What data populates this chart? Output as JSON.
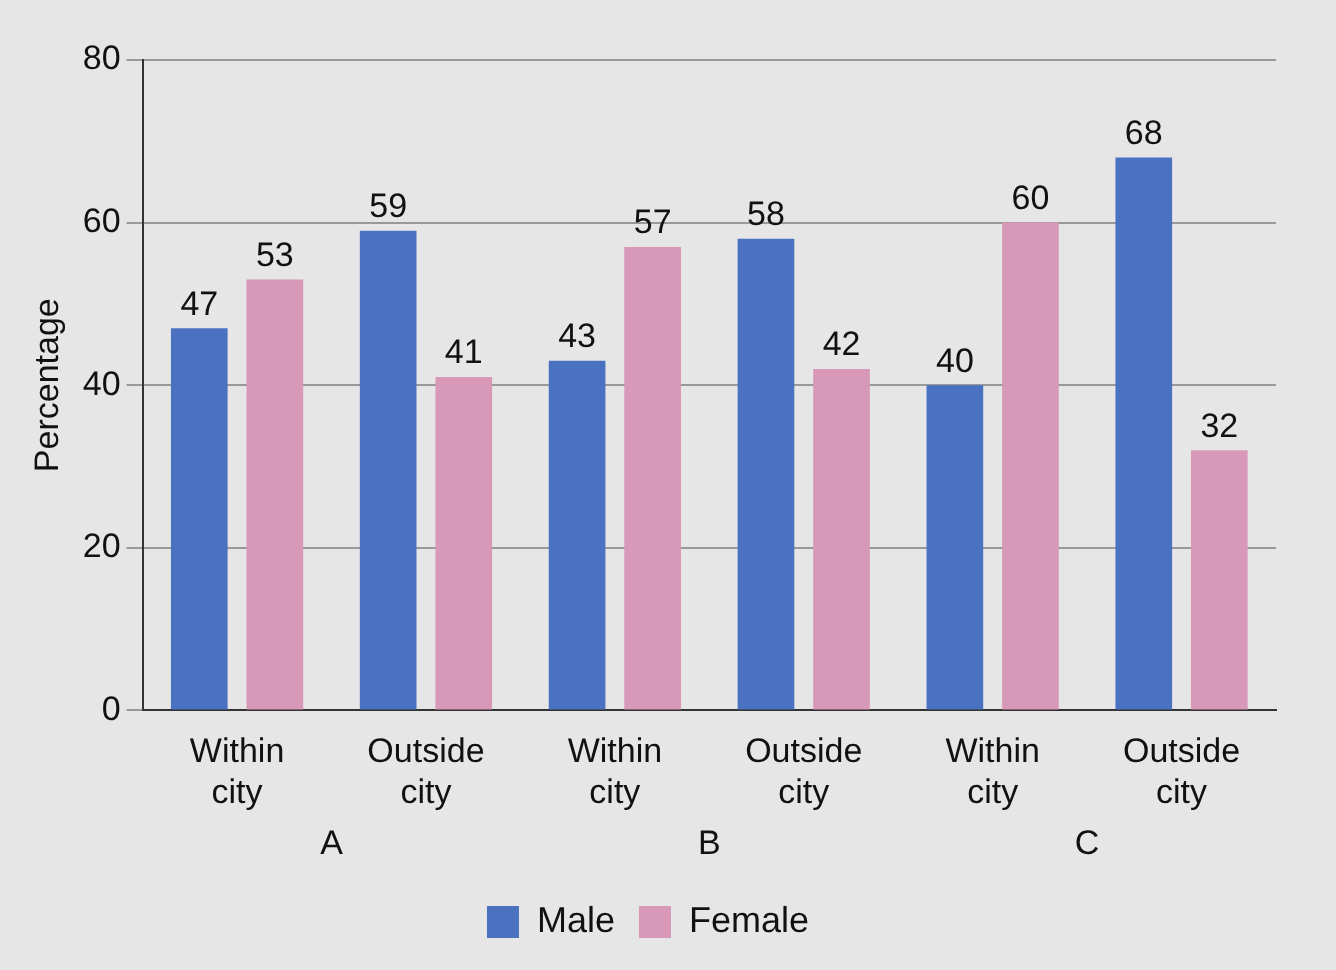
{
  "chart_data": {
    "type": "bar",
    "ylabel": "Percentage",
    "categories": [
      "Within city",
      "Outside city",
      "Within city",
      "Outside city",
      "Within city",
      "Outside city"
    ],
    "series": [
      {
        "name": "Male",
        "color": "#4a72c0",
        "values": [
          47,
          59,
          43,
          58,
          40,
          68
        ]
      },
      {
        "name": "Female",
        "color": "#d898b8",
        "values": [
          53,
          41,
          57,
          42,
          60,
          32
        ]
      }
    ],
    "annotations": [
      "A",
      "B",
      "C"
    ],
    "ylim": [
      0,
      80
    ],
    "yticks": [
      0,
      20,
      40,
      60,
      80
    ],
    "grid": "y",
    "legend": "bottom",
    "data_labels": true
  }
}
